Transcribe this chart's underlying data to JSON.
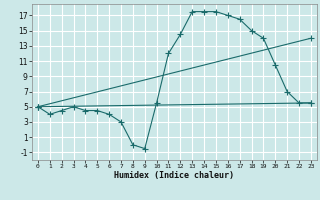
{
  "title": "",
  "xlabel": "Humidex (Indice chaleur)",
  "ylabel": "",
  "bg_color": "#cce8e8",
  "grid_color": "#ffffff",
  "line_color": "#1a6b6b",
  "xlim": [
    -0.5,
    23.5
  ],
  "ylim": [
    -2,
    18.5
  ],
  "yticks": [
    -1,
    1,
    3,
    5,
    7,
    9,
    11,
    13,
    15,
    17
  ],
  "xticks": [
    0,
    1,
    2,
    3,
    4,
    5,
    6,
    7,
    8,
    9,
    10,
    11,
    12,
    13,
    14,
    15,
    16,
    17,
    18,
    19,
    20,
    21,
    22,
    23
  ],
  "line1_x": [
    0,
    1,
    2,
    3,
    4,
    5,
    6,
    7,
    8,
    9,
    10,
    11,
    12,
    13,
    14,
    15,
    16,
    17,
    18,
    19,
    20,
    21,
    22,
    23
  ],
  "line1_y": [
    5,
    4,
    4.5,
    5,
    4.5,
    4.5,
    4,
    3,
    0,
    -0.5,
    5.5,
    12,
    14.5,
    17.5,
    17.5,
    17.5,
    17,
    16.5,
    15,
    14,
    10.5,
    7,
    5.5,
    5.5
  ],
  "line2_x": [
    0,
    23
  ],
  "line2_y": [
    5,
    5.5
  ],
  "line3_x": [
    0,
    23
  ],
  "line3_y": [
    5,
    14
  ],
  "marker": "+",
  "markersize": 4,
  "linewidth": 0.8
}
